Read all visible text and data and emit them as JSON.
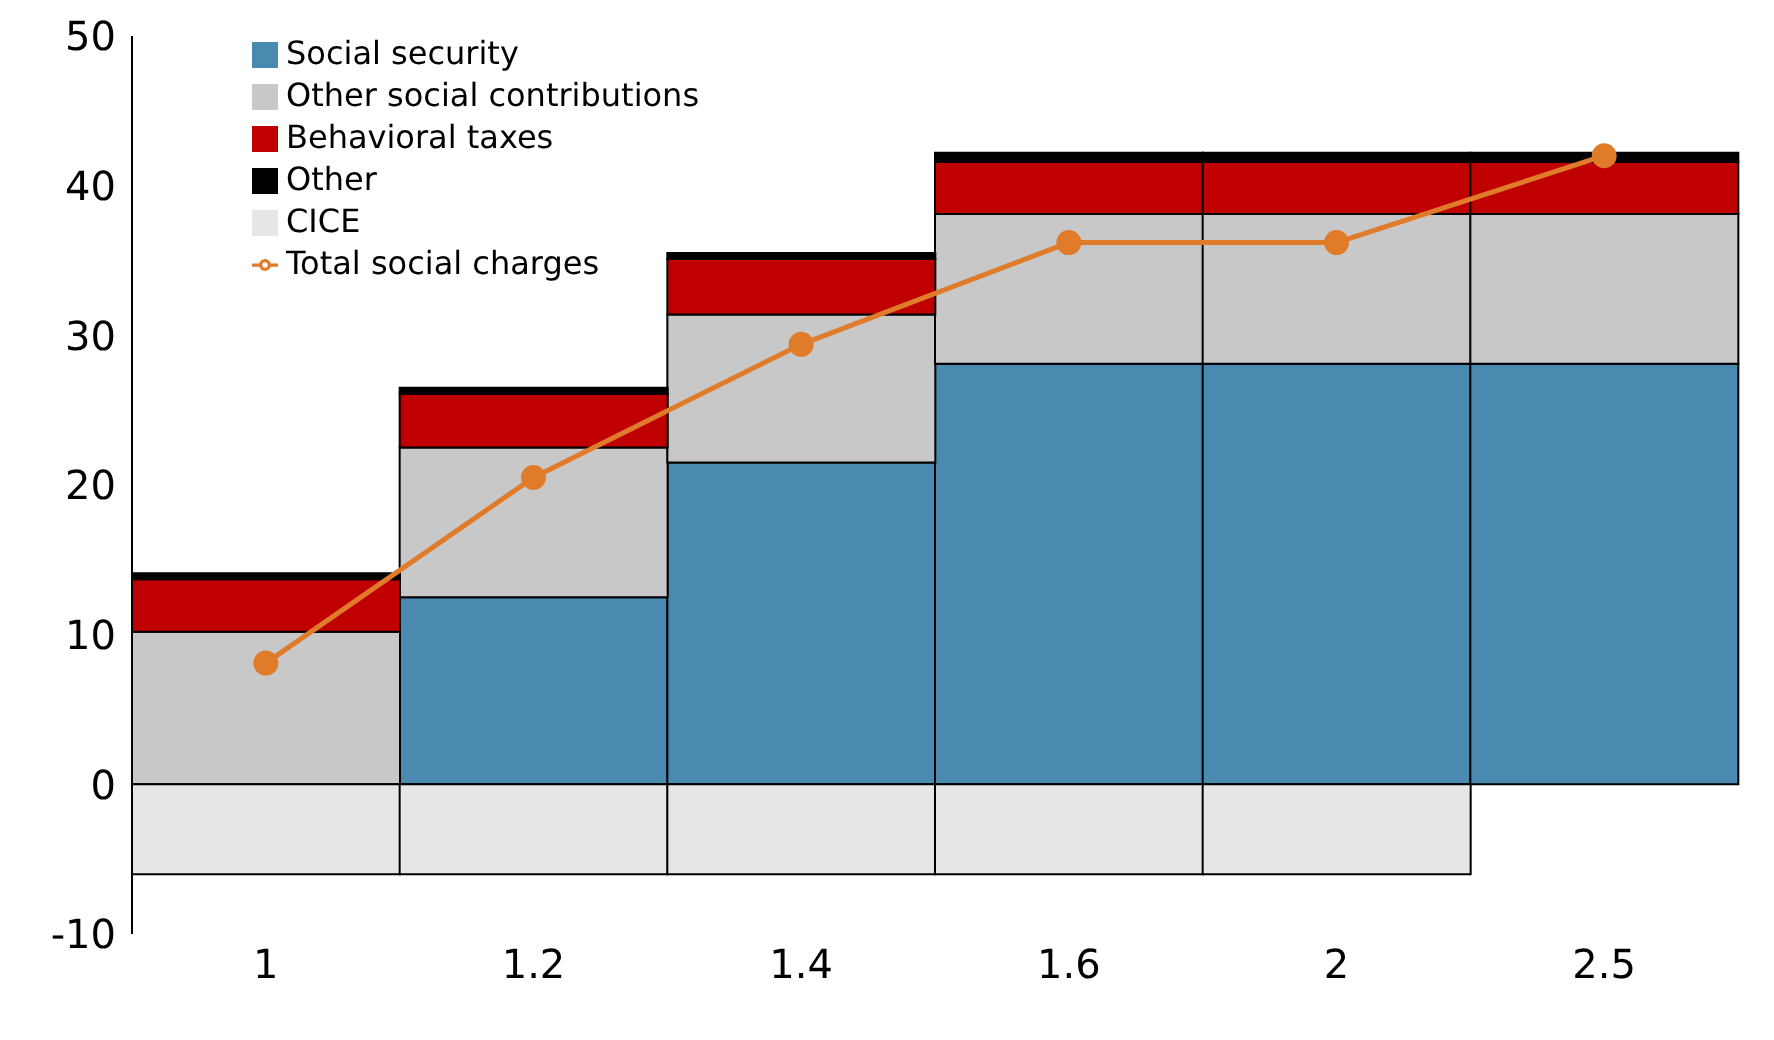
{
  "chart_data": {
    "type": "bar",
    "stacked": true,
    "categories": [
      "1",
      "1.2",
      "1.4",
      "1.6",
      "2",
      "2.5"
    ],
    "series": [
      {
        "name": "Social security",
        "color": "#4a8ab0",
        "values": [
          0,
          12.5,
          21.5,
          28.1,
          28.1,
          28.1
        ]
      },
      {
        "name": "Other social contributions",
        "color": "#c8c8c8",
        "values": [
          10.2,
          10,
          9.9,
          10,
          10,
          10
        ]
      },
      {
        "name": "Behavioral taxes",
        "color": "#c00000",
        "values": [
          3.5,
          3.6,
          3.7,
          3.5,
          3.5,
          3.5
        ]
      },
      {
        "name": "Other",
        "color": "#000000",
        "values": [
          0.4,
          0.4,
          0.4,
          0.6,
          0.6,
          0.6
        ]
      },
      {
        "name": "CICE",
        "color": "#e6e6e6",
        "values": [
          -6,
          -6,
          -6,
          -6,
          -6,
          null
        ]
      },
      {
        "name": "Total social charges",
        "type": "line",
        "color": "#e07b2a",
        "values": [
          8.1,
          20.5,
          29.4,
          36.2,
          36.2,
          42
        ]
      }
    ],
    "ylim": [
      -10,
      50
    ],
    "yticks": [
      -10,
      0,
      10,
      20,
      30,
      40,
      50
    ],
    "grid": false,
    "legend": "top left",
    "marker": "circle"
  }
}
